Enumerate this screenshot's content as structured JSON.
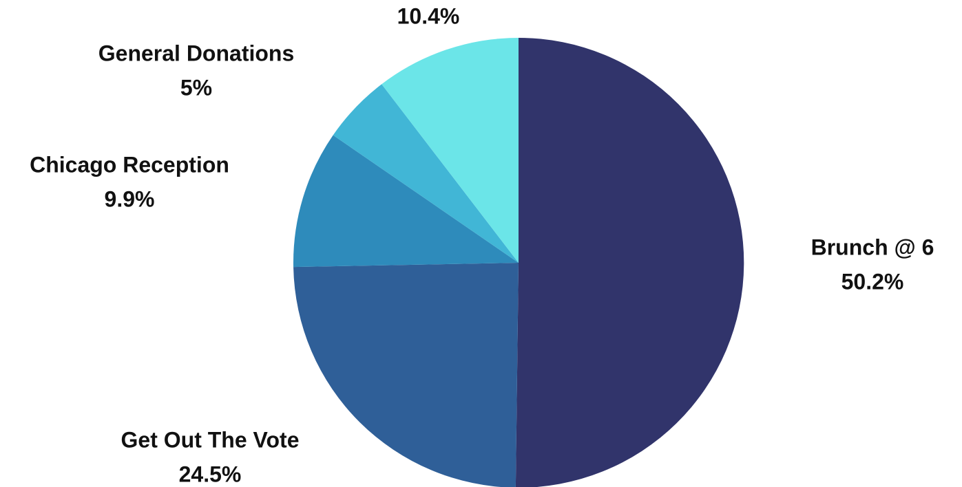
{
  "chart_data": {
    "type": "pie",
    "title": "",
    "start_angle_deg": 0,
    "direction": "clockwise",
    "slices": [
      {
        "label": "Brunch @ 6",
        "value": 50.2,
        "value_label": "50.2%",
        "color": "#31346b"
      },
      {
        "label": "Get Out The Vote",
        "value": 24.5,
        "value_label": "24.5%",
        "color": "#2f5f98"
      },
      {
        "label": "Chicago Reception",
        "value": 9.9,
        "value_label": "9.9%",
        "color": "#2e8bbb"
      },
      {
        "label": "General Donations",
        "value": 5.0,
        "value_label": "5%",
        "color": "#41b6d6"
      },
      {
        "label": "",
        "value": 10.4,
        "value_label": "10.4%",
        "color": "#6be5e8"
      }
    ],
    "legend": "none"
  }
}
